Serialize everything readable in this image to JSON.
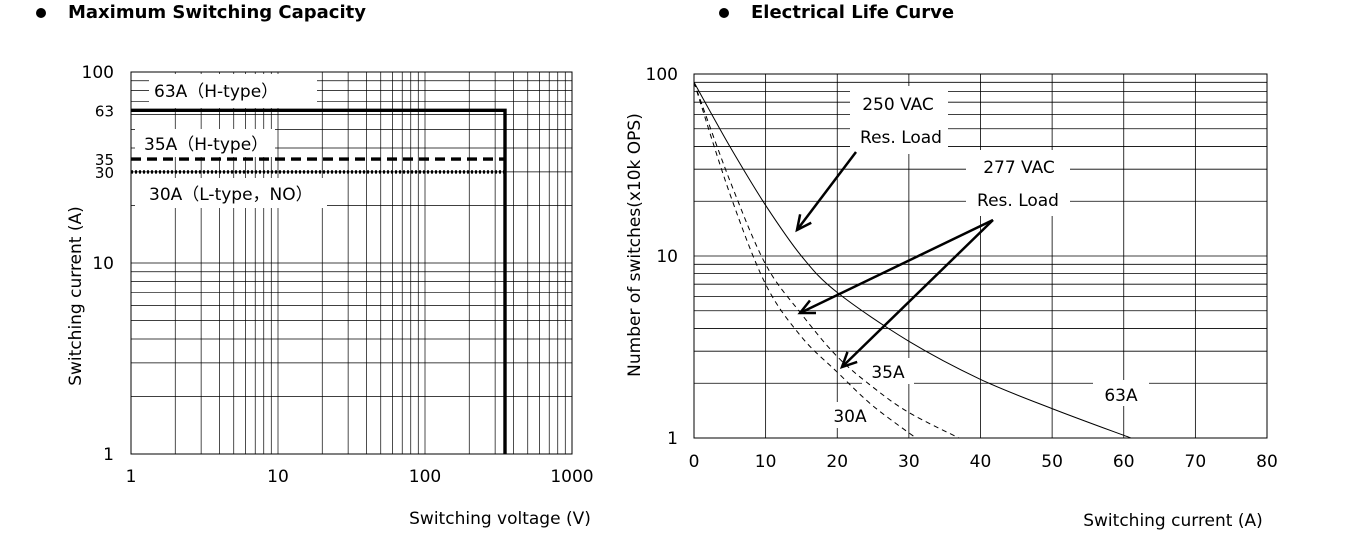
{
  "headings": {
    "left": "Maximum Switching Capacity",
    "right": "Electrical Life Curve"
  },
  "chart_data": [
    {
      "type": "line",
      "title": "Maximum Switching Capacity",
      "xlabel": "Switching voltage (V)",
      "ylabel": "Switching current (A)",
      "x_scale": "log",
      "y_scale": "log",
      "xlim": [
        1,
        1000
      ],
      "ylim": [
        1,
        100
      ],
      "grid": true,
      "x_ticks": [
        "1",
        "10",
        "100",
        "1000"
      ],
      "y_ticks": [
        "1",
        "10",
        "30",
        "35",
        "63",
        "100"
      ],
      "series": [
        {
          "name": "63A (H-type)",
          "label": "63A（H-type）",
          "style": "solid",
          "x": [
            1,
            350,
            350
          ],
          "y": [
            63,
            63,
            1
          ]
        },
        {
          "name": "35A (H-type)",
          "label": "35A（H-type）",
          "style": "dashed",
          "x": [
            1,
            350
          ],
          "y": [
            35,
            35
          ]
        },
        {
          "name": "30A (L-type, NO)",
          "label": "30A（L-type，NO）",
          "style": "dotted",
          "x": [
            1,
            350
          ],
          "y": [
            30,
            30
          ]
        }
      ]
    },
    {
      "type": "line",
      "title": "Electrical Life Curve",
      "xlabel": "Switching current (A)",
      "ylabel": "Number of switches(x10k OPS)",
      "x_scale": "linear",
      "y_scale": "log",
      "xlim": [
        0,
        80
      ],
      "ylim": [
        1,
        100
      ],
      "grid": true,
      "x_ticks": [
        "0",
        "10",
        "20",
        "30",
        "40",
        "50",
        "60",
        "70",
        "80"
      ],
      "y_ticks": [
        "1",
        "10",
        "100"
      ],
      "annotations": [
        "250 VAC",
        "Res. Load",
        "277 VAC",
        "Res. Load"
      ],
      "series": [
        {
          "name": "63A",
          "style": "solid",
          "x": [
            0,
            5,
            10,
            15,
            20,
            30,
            40,
            50,
            61
          ],
          "y": [
            90,
            40,
            19,
            10,
            6.3,
            3.4,
            2.1,
            1.45,
            1
          ]
        },
        {
          "name": "35A",
          "style": "dashed",
          "x": [
            0,
            5,
            10,
            15,
            20,
            25,
            30,
            37
          ],
          "y": [
            90,
            26,
            9,
            4.8,
            2.8,
            1.9,
            1.38,
            1
          ]
        },
        {
          "name": "30A",
          "style": "dashed",
          "x": [
            0,
            5,
            10,
            15,
            20,
            25,
            31
          ],
          "y": [
            90,
            22,
            7,
            3.6,
            2.3,
            1.5,
            1
          ]
        }
      ]
    }
  ]
}
